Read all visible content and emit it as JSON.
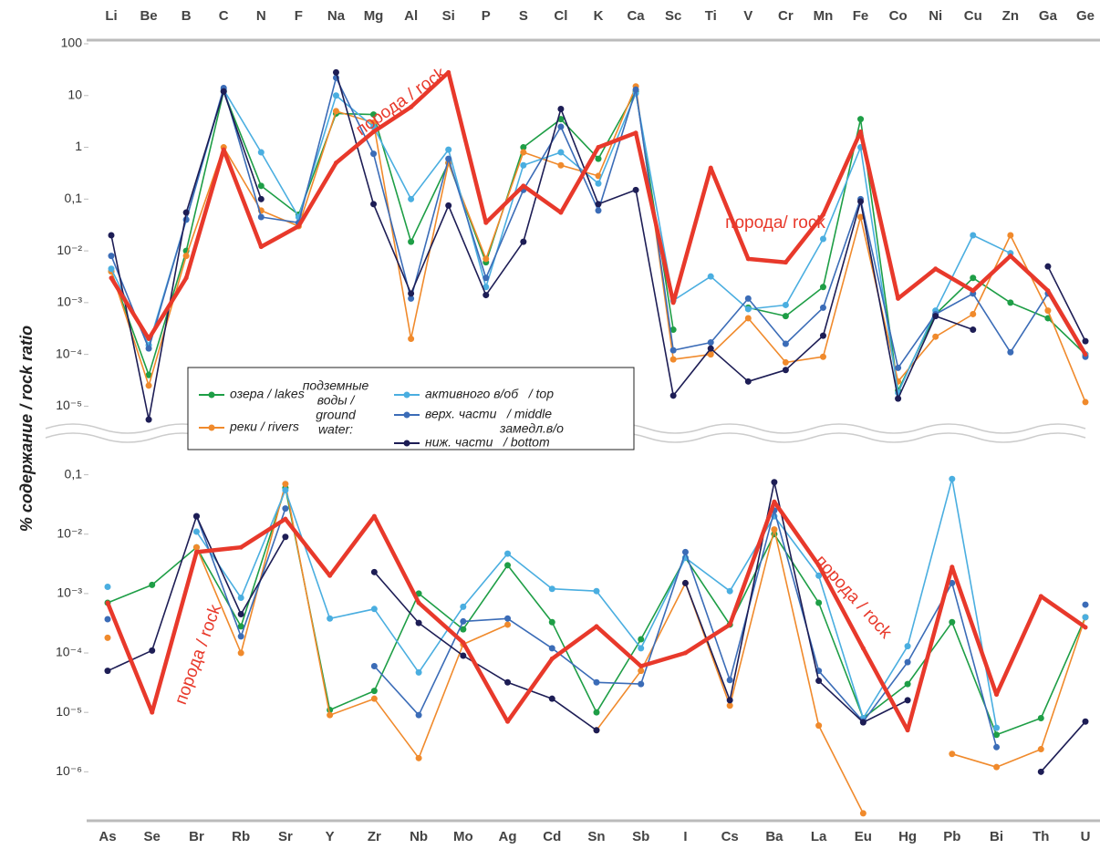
{
  "chart_data": [
    {
      "type": "line",
      "log": true,
      "categories": [
        "Li",
        "Be",
        "B",
        "C",
        "N",
        "F",
        "Na",
        "Mg",
        "Al",
        "Si",
        "P",
        "S",
        "Cl",
        "K",
        "Ca",
        "Sc",
        "Ti",
        "V",
        "Cr",
        "Mn",
        "Fe",
        "Co",
        "Ni",
        "Cu",
        "Zn",
        "Ga",
        "Ge"
      ],
      "ylabel": "% содержание / rock ratio",
      "ylim": [
        4e-06,
        150
      ],
      "yticks": [
        100,
        10,
        1,
        {
          "value": 0.1,
          "label": "0,1"
        },
        {
          "value": 0.01,
          "label": "10⁻²"
        },
        {
          "value": 0.001,
          "label": "10⁻³"
        },
        {
          "value": 0.0001,
          "label": "10⁻⁴"
        },
        {
          "value": 1e-05,
          "label": "10⁻⁵"
        }
      ],
      "legend_group_label": [
        "подземные",
        "воды /",
        "ground",
        "water:"
      ],
      "legend_sublabel": "замедл.в/о",
      "annotations": [
        "порода / rock",
        "порода/ rock"
      ],
      "series": [
        {
          "name": "озера / lakes",
          "color": "#1e9e46",
          "values": [
            0.004,
            4e-05,
            0.01,
            12,
            0.18,
            0.05,
            4.5,
            4.3,
            0.015,
            0.5,
            0.006,
            1,
            3.5,
            0.6,
            12,
            0.0003,
            null,
            0.0008,
            0.00055,
            0.002,
            3.5,
            2e-05,
            0.0006,
            0.003,
            0.001,
            0.0005,
            0.0001
          ]
        },
        {
          "name": "реки / rivers",
          "color": "#f08a2c",
          "values": [
            0.004,
            2.5e-05,
            0.008,
            1,
            0.06,
            0.03,
            5,
            3,
            0.0002,
            0.5,
            0.007,
            0.8,
            0.45,
            0.28,
            15,
            8e-05,
            0.0001,
            0.0005,
            7e-05,
            9e-05,
            0.045,
            3e-05,
            0.00022,
            0.0006,
            0.02,
            0.0007,
            1.2e-05
          ]
        },
        {
          "name": "активного в/об   / top",
          "color": "#4aaee0",
          "values": [
            0.0045,
            0.00015,
            0.04,
            13,
            0.8,
            0.045,
            10,
            2.5,
            0.1,
            0.9,
            0.002,
            0.45,
            0.8,
            0.2,
            11,
            0.0011,
            0.0032,
            0.00075,
            0.0009,
            0.017,
            1,
            1.8e-05,
            0.0007,
            0.02,
            0.009,
            null,
            0.0001
          ]
        },
        {
          "name": "верх. части   / middle",
          "color": "#3b6cb7",
          "values": [
            0.008,
            0.00013,
            0.04,
            14,
            0.045,
            0.035,
            22,
            0.75,
            0.0012,
            0.6,
            0.003,
            0.15,
            2.5,
            0.06,
            13,
            0.00012,
            0.00017,
            0.0012,
            0.00016,
            0.0008,
            0.1,
            5.5e-05,
            0.0006,
            0.0015,
            0.00011,
            0.0015,
            9e-05
          ]
        },
        {
          "name": "ниж. части   / bottom",
          "color": "#1d1d55",
          "values": [
            0.02,
            5.5e-06,
            0.055,
            12,
            0.1,
            null,
            28,
            0.08,
            0.0015,
            0.075,
            0.0014,
            0.015,
            5.5,
            0.08,
            0.15,
            1.6e-05,
            0.00013,
            3e-05,
            5e-05,
            0.00023,
            0.09,
            1.4e-05,
            0.00055,
            0.0003,
            null,
            0.005,
            0.00018
          ]
        },
        {
          "color": "#e8392b",
          "markers": false,
          "values": [
            0.003,
            0.0002,
            0.003,
            0.9,
            0.012,
            0.03,
            0.5,
            2,
            6,
            28,
            0.035,
            0.18,
            0.055,
            1,
            1.9,
            0.001,
            0.4,
            0.007,
            0.006,
            0.05,
            2,
            0.0012,
            0.0045,
            0.0017,
            0.008,
            0.0017,
            0.0001
          ]
        }
      ]
    },
    {
      "type": "line",
      "log": true,
      "categories": [
        "As",
        "Se",
        "Br",
        "Rb",
        "Sr",
        "Y",
        "Zr",
        "Nb",
        "Mo",
        "Ag",
        "Cd",
        "Sn",
        "Sb",
        "I",
        "Cs",
        "Ba",
        "La",
        "Eu",
        "Hg",
        "Pb",
        "Bi",
        "Th",
        "U"
      ],
      "ylim": [
        1.5e-07,
        0.2
      ],
      "yticks": [
        {
          "value": 0.1,
          "label": "0,1"
        },
        {
          "value": 0.01,
          "label": "10⁻²"
        },
        {
          "value": 0.001,
          "label": "10⁻³"
        },
        {
          "value": 0.0001,
          "label": "10⁻⁴"
        },
        {
          "value": 1e-05,
          "label": "10⁻⁵"
        },
        {
          "value": 1e-06,
          "label": "10⁻⁶"
        }
      ],
      "annotations": [
        "порода / rock",
        "порода / rock"
      ],
      "series": [
        {
          "color": "#1e9e46",
          "values": [
            0.0007,
            0.0014,
            0.006,
            0.00028,
            0.06,
            1.1e-05,
            2.3e-05,
            0.001,
            0.00025,
            0.003,
            0.00033,
            1e-05,
            0.00017,
            0.004,
            0.0003,
            0.01,
            0.0007,
            8e-06,
            3e-05,
            0.00033,
            4.2e-06,
            8e-06,
            0.0004
          ]
        },
        {
          "color": "#f08a2c",
          "values": [
            0.00018,
            null,
            0.006,
            0.0001,
            0.07,
            9e-06,
            1.7e-05,
            1.7e-06,
            0.00014,
            0.0003,
            null,
            5e-06,
            5e-05,
            0.0015,
            1.3e-05,
            0.012,
            6e-06,
            2e-07,
            null,
            2e-06,
            1.2e-06,
            2.4e-06,
            0.0004
          ]
        },
        {
          "color": "#4aaee0",
          "values": [
            0.0013,
            null,
            0.011,
            0.00085,
            0.055,
            0.00038,
            0.00055,
            4.7e-05,
            0.0006,
            0.0047,
            0.0012,
            0.0011,
            0.00012,
            0.004,
            0.0011,
            0.02,
            0.002,
            8e-06,
            0.00013,
            0.085,
            5.5e-06,
            null,
            0.0004
          ]
        },
        {
          "color": "#3b6cb7",
          "values": [
            0.00037,
            null,
            0.02,
            0.00019,
            0.027,
            null,
            6e-05,
            9e-06,
            0.00034,
            0.00038,
            0.00012,
            3.2e-05,
            3e-05,
            0.005,
            3.5e-05,
            0.025,
            5e-05,
            7e-06,
            7e-05,
            0.0015,
            2.6e-06,
            null,
            0.00065
          ]
        },
        {
          "color": "#1d1d55",
          "values": [
            5e-05,
            0.00011,
            0.02,
            0.00045,
            0.009,
            null,
            0.0023,
            0.00032,
            9e-05,
            3.2e-05,
            1.7e-05,
            5e-06,
            null,
            0.0015,
            1.6e-05,
            0.075,
            3.4e-05,
            6.8e-06,
            1.6e-05,
            null,
            null,
            1e-06,
            7e-06
          ]
        },
        {
          "color": "#e8392b",
          "markers": false,
          "values": [
            0.0007,
            1e-05,
            0.005,
            0.006,
            0.018,
            0.002,
            0.02,
            0.0007,
            0.00015,
            7e-06,
            8e-05,
            0.00028,
            6e-05,
            0.0001,
            0.0003,
            0.035,
            0.003,
            0.00012,
            5e-06,
            0.0028,
            2e-05,
            0.0009,
            0.00027
          ]
        }
      ]
    }
  ]
}
